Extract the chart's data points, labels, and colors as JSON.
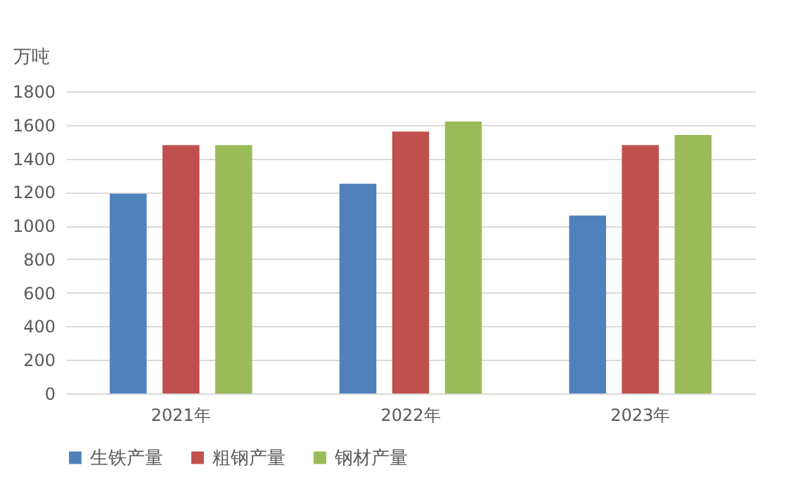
{
  "chart_data": {
    "type": "bar",
    "ylabel": "万吨",
    "categories": [
      "2021年",
      "2022年",
      "2023年"
    ],
    "series": [
      {
        "name": "生铁产量",
        "color": "#4f81bd",
        "values": [
          1190,
          1250,
          1060
        ]
      },
      {
        "name": "粗钢产量",
        "color": "#c0504d",
        "values": [
          1480,
          1560,
          1480
        ]
      },
      {
        "name": "钢材产量",
        "color": "#9bbb59",
        "values": [
          1480,
          1620,
          1540
        ]
      }
    ],
    "ylim": [
      0,
      1800
    ],
    "yticks": [
      0,
      200,
      400,
      600,
      800,
      1000,
      1200,
      1400,
      1600,
      1800
    ],
    "grid": "y",
    "legend": "bottom"
  }
}
